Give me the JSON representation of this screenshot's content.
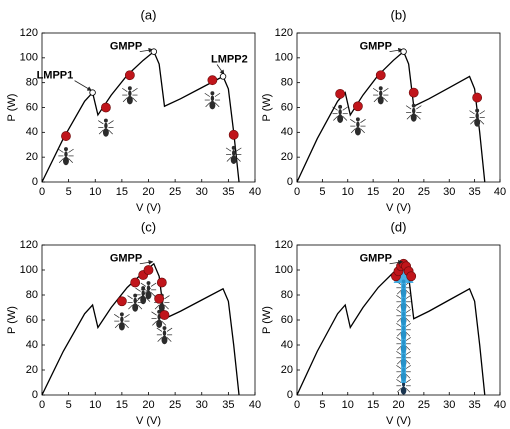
{
  "chart_data": [
    {
      "type": "line",
      "title": "(a)",
      "xlabel": "V (V)",
      "ylabel": "P (W)",
      "xlim": [
        0,
        40
      ],
      "ylim": [
        0,
        120
      ],
      "xticks": [
        0,
        5,
        10,
        15,
        20,
        25,
        30,
        35,
        40
      ],
      "yticks": [
        0,
        20,
        40,
        60,
        80,
        100,
        120
      ],
      "series": [
        {
          "type": "line",
          "color": "#000000",
          "x": [
            0,
            4,
            8,
            9.5,
            10.5,
            13,
            16,
            19,
            21,
            22,
            23,
            26,
            30,
            34,
            35,
            36,
            37
          ],
          "values": [
            0,
            35,
            65,
            72,
            54,
            70,
            86,
            98,
            105,
            95,
            61,
            67,
            76,
            85,
            75,
            40,
            0
          ]
        },
        {
          "type": "scatter",
          "color": "#c0151b",
          "x": [
            4.5,
            12,
            16.5,
            32,
            36
          ],
          "values": [
            37,
            60,
            86,
            82,
            38
          ]
        }
      ],
      "annotations": [
        {
          "text": "LMPP1",
          "x": 9.5,
          "y": 72,
          "color": "#1e4d1e",
          "open_marker": true
        },
        {
          "text": "GMPP",
          "x": 21,
          "y": 105,
          "color": "#c0151b",
          "open_marker": true
        },
        {
          "text": "LMPP2",
          "x": 34,
          "y": 85,
          "color": "#1e4d1e",
          "open_marker": true
        }
      ]
    },
    {
      "type": "line",
      "title": "(b)",
      "xlabel": "V (V)",
      "ylabel": "P (W)",
      "xlim": [
        0,
        40
      ],
      "ylim": [
        0,
        120
      ],
      "xticks": [
        0,
        5,
        10,
        15,
        20,
        25,
        30,
        35,
        40
      ],
      "yticks": [
        0,
        20,
        40,
        60,
        80,
        100,
        120
      ],
      "series": [
        {
          "type": "line",
          "color": "#000000",
          "x": [
            0,
            4,
            8,
            9.5,
            10.5,
            13,
            16,
            19,
            21,
            22,
            23,
            26,
            30,
            34,
            35,
            36,
            37
          ],
          "values": [
            0,
            35,
            65,
            72,
            54,
            70,
            86,
            98,
            105,
            95,
            61,
            67,
            76,
            85,
            75,
            40,
            0
          ]
        },
        {
          "type": "scatter",
          "color": "#c0151b",
          "x": [
            8.5,
            12,
            16.5,
            23,
            35.5
          ],
          "values": [
            71,
            61,
            86,
            72,
            68
          ]
        }
      ],
      "annotations": [
        {
          "text": "GMPP",
          "x": 21,
          "y": 105,
          "color": "#c0151b",
          "open_marker": true
        }
      ]
    },
    {
      "type": "line",
      "title": "(c)",
      "xlabel": "V (V)",
      "ylabel": "P (W)",
      "xlim": [
        0,
        40
      ],
      "ylim": [
        0,
        120
      ],
      "xticks": [
        0,
        5,
        10,
        15,
        20,
        25,
        30,
        35,
        40
      ],
      "yticks": [
        0,
        20,
        40,
        60,
        80,
        100,
        120
      ],
      "series": [
        {
          "type": "line",
          "color": "#000000",
          "x": [
            0,
            4,
            8,
            9.5,
            10.5,
            13,
            16,
            19,
            21,
            22,
            23,
            26,
            30,
            34,
            35,
            36,
            37
          ],
          "values": [
            0,
            35,
            65,
            72,
            54,
            70,
            86,
            98,
            105,
            95,
            61,
            67,
            76,
            85,
            75,
            40,
            0
          ]
        },
        {
          "type": "scatter",
          "color": "#c0151b",
          "x": [
            15,
            17.5,
            19,
            20,
            22.5,
            22,
            23
          ],
          "values": [
            75,
            90,
            96,
            100,
            90,
            77,
            64
          ]
        }
      ],
      "annotations": [
        {
          "text": "GMPP",
          "x": 21,
          "y": 105,
          "color": "#c0151b",
          "open_marker": false
        }
      ]
    },
    {
      "type": "line",
      "title": "(d)",
      "xlabel": "V (V)",
      "ylabel": "P (W)",
      "xlim": [
        0,
        40
      ],
      "ylim": [
        0,
        120
      ],
      "xticks": [
        0,
        5,
        10,
        15,
        20,
        25,
        30,
        35,
        40
      ],
      "yticks": [
        0,
        20,
        40,
        60,
        80,
        100,
        120
      ],
      "series": [
        {
          "type": "line",
          "color": "#000000",
          "x": [
            0,
            4,
            8,
            9.5,
            10.5,
            13,
            16,
            19,
            21,
            22,
            23,
            26,
            30,
            34,
            35,
            36,
            37
          ],
          "values": [
            0,
            35,
            65,
            72,
            54,
            70,
            86,
            98,
            105,
            95,
            61,
            67,
            76,
            85,
            75,
            40,
            0
          ]
        },
        {
          "type": "scatter",
          "color": "#c0151b",
          "x": [
            19.5,
            20,
            20.5,
            21,
            21.5,
            22,
            22.5
          ],
          "values": [
            95,
            99,
            103,
            105,
            103,
            99,
            95
          ]
        }
      ],
      "annotations": [
        {
          "text": "GMPP",
          "x": 21,
          "y": 105,
          "color": "#c0151b",
          "open_marker": false
        }
      ]
    }
  ]
}
